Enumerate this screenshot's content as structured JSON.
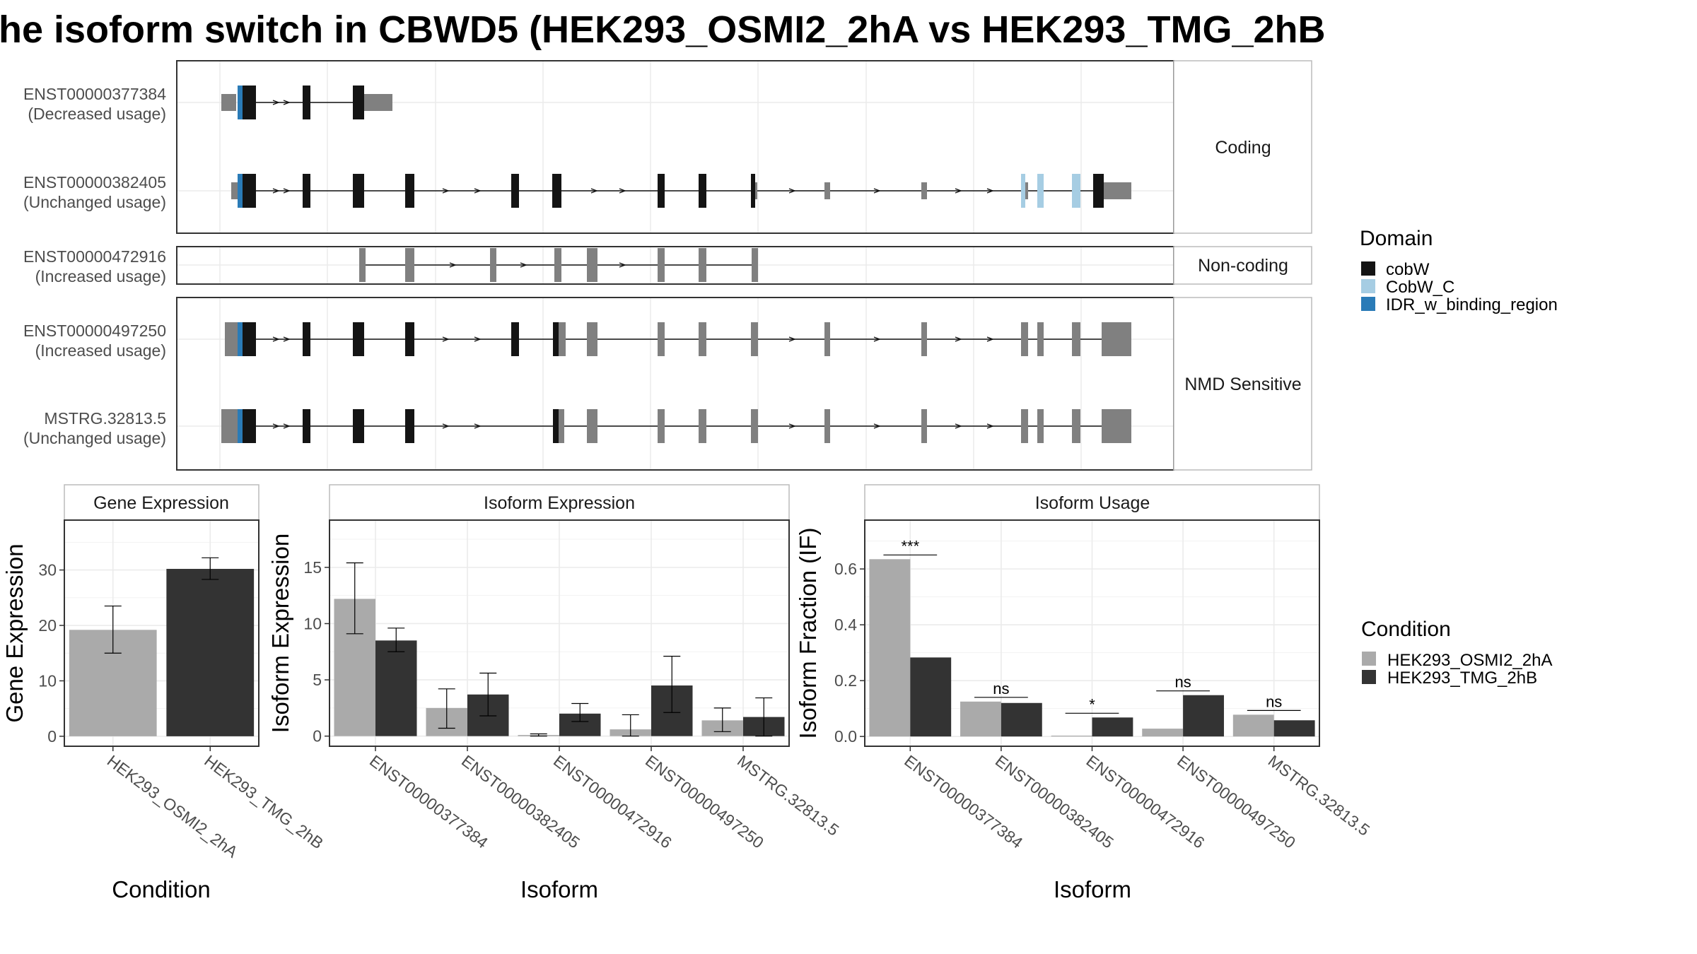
{
  "title": "he isoform switch in CBWD5 (HEK293_OSMI2_2hA vs HEK293_TMG_2hB",
  "colors": {
    "cobW": "#141414",
    "CobW_C": "#a6cde3",
    "IDR_w_binding_region": "#2a7bb7",
    "noncoding_exon": "#808080",
    "cond1": "#aaaaaa",
    "cond2": "#333333"
  },
  "structure": {
    "facets": [
      {
        "label": "Coding",
        "transcripts": [
          "ENST00000377384",
          "ENST00000382405"
        ]
      },
      {
        "label": "Non-coding",
        "transcripts": [
          "ENST00000472916"
        ]
      },
      {
        "label": "NMD Sensitive",
        "transcripts": [
          "ENST00000497250",
          "MSTRG.32813.5"
        ]
      }
    ],
    "transcripts": [
      {
        "id": "ENST00000377384",
        "usage": "(Decreased usage)"
      },
      {
        "id": "ENST00000382405",
        "usage": "(Unchanged usage)"
      },
      {
        "id": "ENST00000472916",
        "usage": "(Increased usage)"
      },
      {
        "id": "ENST00000497250",
        "usage": "(Increased usage)"
      },
      {
        "id": "MSTRG.32813.5",
        "usage": "(Unchanged usage)"
      }
    ]
  },
  "domain_legend": {
    "title": "Domain",
    "items": [
      {
        "name": "cobW",
        "color": "#141414"
      },
      {
        "name": "CobW_C",
        "color": "#a6cde3"
      },
      {
        "name": "IDR_w_binding_region",
        "color": "#2a7bb7"
      }
    ]
  },
  "condition_legend": {
    "title": "Condition",
    "items": [
      {
        "name": "HEK293_OSMI2_2hA",
        "color": "#aaaaaa"
      },
      {
        "name": "HEK293_TMG_2hB",
        "color": "#333333"
      }
    ]
  },
  "chart_data": [
    {
      "type": "bar",
      "title": "Gene Expression",
      "xlabel": "Condition",
      "ylabel": "Gene Expression",
      "categories": [
        "HEK293_OSMI2_2hA",
        "HEK293_TMG_2hB"
      ],
      "values": [
        19.2,
        30.2
      ],
      "error_low": [
        15.0,
        28.3
      ],
      "error_high": [
        23.5,
        32.2
      ],
      "yticks": [
        0,
        10,
        20,
        30
      ],
      "ylim": [
        -1.8,
        39.0
      ]
    },
    {
      "type": "bar",
      "title": "Isoform Expression",
      "xlabel": "Isoform",
      "ylabel": "Isoform Expression",
      "categories": [
        "ENST00000377384",
        "ENST00000382405",
        "ENST00000472916",
        "ENST00000497250",
        "MSTRG.32813.5"
      ],
      "series": [
        {
          "name": "HEK293_OSMI2_2hA",
          "values": [
            12.2,
            2.5,
            0.1,
            0.6,
            1.4
          ],
          "error_low": [
            9.1,
            0.7,
            0.0,
            0.0,
            0.4
          ],
          "error_high": [
            15.4,
            4.2,
            0.2,
            1.9,
            2.5
          ]
        },
        {
          "name": "HEK293_TMG_2hB",
          "values": [
            8.5,
            3.7,
            2.0,
            4.5,
            1.7
          ],
          "error_low": [
            7.5,
            1.8,
            1.3,
            2.1,
            0.0
          ],
          "error_high": [
            9.6,
            5.6,
            2.9,
            7.1,
            3.4
          ]
        }
      ],
      "yticks": [
        0,
        5,
        10,
        15
      ],
      "ylim": [
        -0.9,
        19.2
      ]
    },
    {
      "type": "bar",
      "title": "Isoform Usage",
      "xlabel": "Isoform",
      "ylabel": "Isoform Fraction (IF)",
      "categories": [
        "ENST00000377384",
        "ENST00000382405",
        "ENST00000472916",
        "ENST00000497250",
        "MSTRG.32813.5"
      ],
      "series": [
        {
          "name": "HEK293_OSMI2_2hA",
          "values": [
            0.635,
            0.125,
            0.003,
            0.028,
            0.078
          ]
        },
        {
          "name": "HEK293_TMG_2hB",
          "values": [
            0.283,
            0.12,
            0.068,
            0.148,
            0.058
          ]
        }
      ],
      "significance": [
        "***",
        "ns",
        "*",
        "ns",
        "ns"
      ],
      "yticks": [
        0.0,
        0.2,
        0.4,
        0.6
      ],
      "ytick_labels": [
        "0.0",
        "0.2",
        "0.4",
        "0.6"
      ],
      "ylim": [
        -0.035,
        0.775
      ]
    }
  ]
}
